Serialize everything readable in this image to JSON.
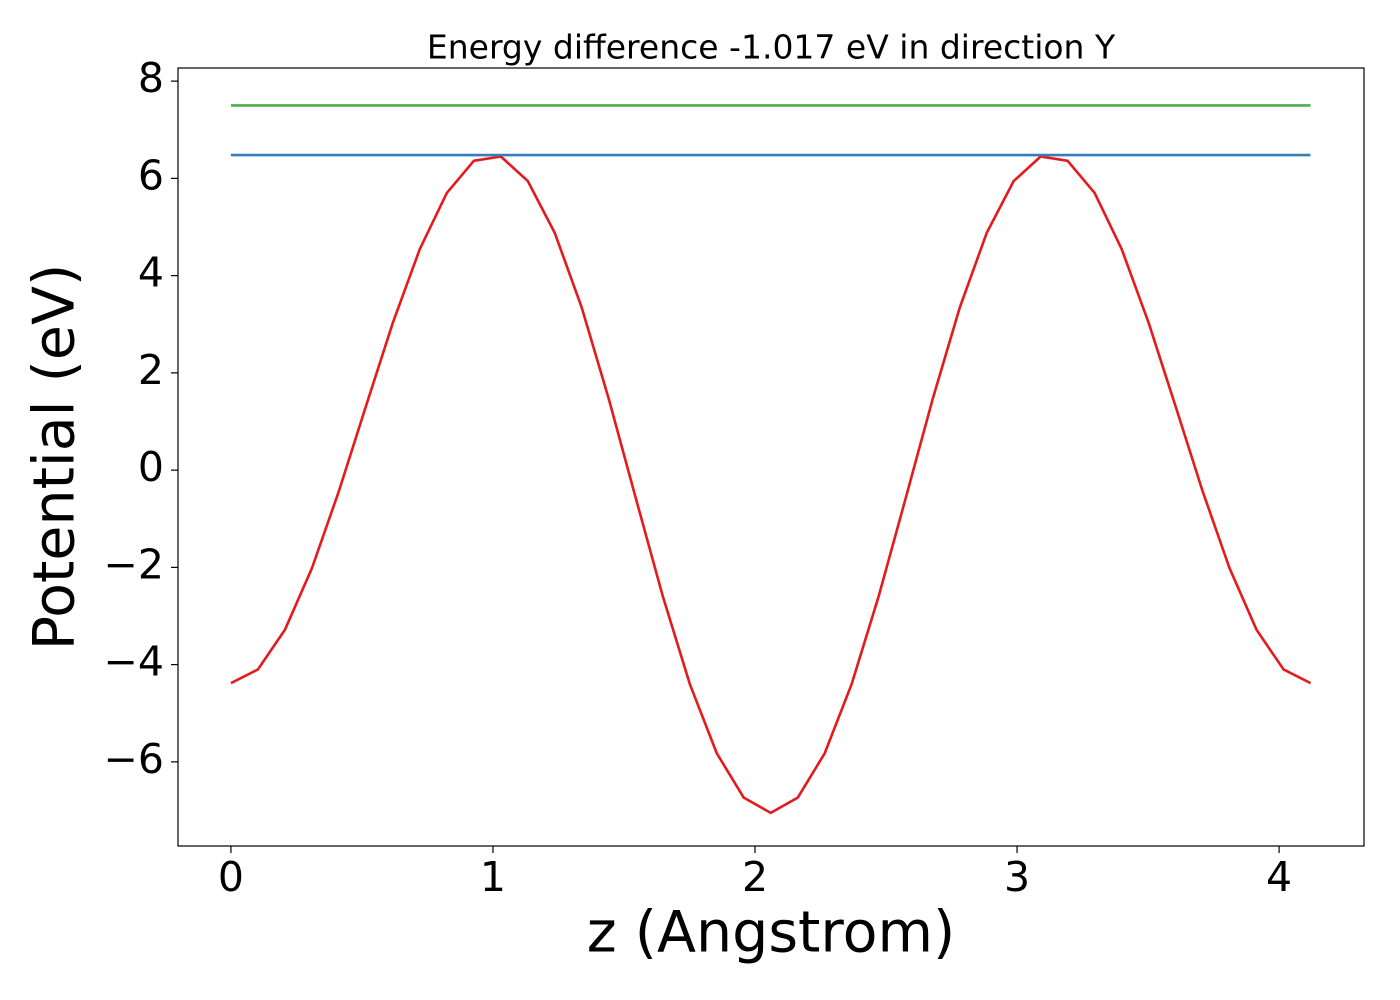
{
  "chart_data": {
    "type": "line",
    "title": "Energy difference -1.017 eV in direction Y",
    "xlabel": "z (Angstrom)",
    "ylabel": "Potential (eV)",
    "xlim": [
      -0.202,
      4.324
    ],
    "ylim": [
      -7.73,
      8.27
    ],
    "xticks": [
      0,
      1,
      2,
      3,
      4
    ],
    "yticks": [
      {
        "value": -6,
        "label": "−6"
      },
      {
        "value": -4,
        "label": "−4"
      },
      {
        "value": -2,
        "label": "−2"
      },
      0,
      2,
      4,
      6,
      8
    ],
    "grid": false,
    "series": [
      {
        "color": "#e41a1c",
        "x": [
          0,
          0.103,
          0.206,
          0.309,
          0.412,
          0.515,
          0.618,
          0.721,
          0.824,
          0.927,
          1.03,
          1.133,
          1.236,
          1.339,
          1.442,
          1.545,
          1.648,
          1.751,
          1.854,
          1.957,
          2.06,
          2.163,
          2.266,
          2.369,
          2.472,
          2.575,
          2.678,
          2.781,
          2.884,
          2.987,
          3.09,
          3.193,
          3.296,
          3.399,
          3.502,
          3.605,
          3.708,
          3.811,
          3.914,
          4.017,
          4.12
        ],
        "values": [
          -4.38,
          -4.099,
          -3.284,
          -2.018,
          -0.432,
          1.311,
          3.032,
          4.549,
          5.701,
          6.361,
          6.45,
          5.944,
          4.876,
          3.337,
          1.462,
          -0.577,
          -2.592,
          -4.397,
          -5.823,
          -6.736,
          -7.05,
          -6.736,
          -5.823,
          -4.397,
          -2.592,
          -0.577,
          1.462,
          3.337,
          4.876,
          5.944,
          6.45,
          6.361,
          5.701,
          4.549,
          3.032,
          1.311,
          -0.432,
          -2.018,
          -3.284,
          -4.099,
          -4.38
        ]
      },
      {
        "color": "#4daf4a",
        "x": [
          0,
          4.12
        ],
        "values": [
          7.5,
          7.5
        ]
      },
      {
        "color": "#377eb8",
        "x": [
          0,
          4.12
        ],
        "values": [
          6.48,
          6.48
        ]
      }
    ]
  }
}
